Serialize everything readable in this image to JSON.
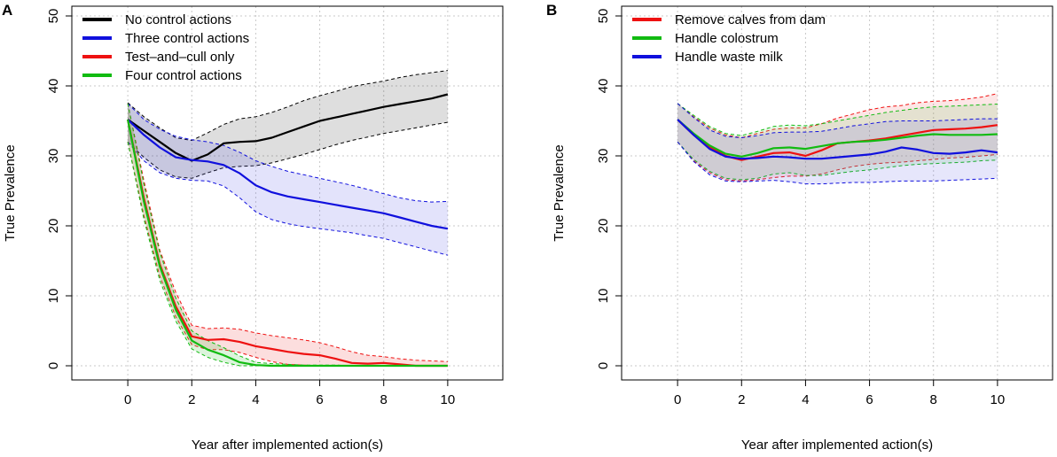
{
  "chart_data": [
    {
      "panel": "A",
      "type": "line",
      "xlabel": "Year after implemented action(s)",
      "ylabel": "True Prevalence",
      "xlim": [
        -1.5,
        11.5
      ],
      "ylim": [
        0,
        50
      ],
      "xticks": [
        0,
        2,
        4,
        6,
        8,
        10
      ],
      "yticks": [
        0,
        10,
        20,
        30,
        40,
        50
      ],
      "grid": true,
      "legend_position": "top-left",
      "series": [
        {
          "name": "No control actions",
          "color": "#000000",
          "fill": "rgba(0,0,0,0.13)",
          "x": [
            0,
            0.5,
            1,
            1.5,
            2,
            2.5,
            3,
            3.5,
            4,
            4.5,
            5,
            5.5,
            6,
            6.5,
            7,
            7.5,
            8,
            8.5,
            9,
            9.5,
            10
          ],
          "mean": [
            35.2,
            33.6,
            32.0,
            30.4,
            29.3,
            30.2,
            31.8,
            32.0,
            32.1,
            32.6,
            33.4,
            34.2,
            35.0,
            35.5,
            36.0,
            36.5,
            37.0,
            37.4,
            37.8,
            38.2,
            38.8
          ],
          "lower": [
            32.0,
            29.8,
            28.0,
            27.0,
            26.8,
            27.6,
            28.3,
            28.5,
            28.6,
            29.0,
            29.6,
            30.2,
            30.9,
            31.6,
            32.2,
            32.7,
            33.2,
            33.6,
            34.0,
            34.4,
            34.8
          ],
          "upper": [
            37.6,
            35.6,
            34.0,
            32.6,
            32.2,
            33.3,
            34.5,
            35.3,
            35.6,
            36.2,
            37.0,
            37.9,
            38.6,
            39.2,
            39.9,
            40.3,
            40.7,
            41.2,
            41.6,
            41.9,
            42.2
          ]
        },
        {
          "name": "Three control actions",
          "color": "#1010dd",
          "fill": "rgba(90,90,230,0.17)",
          "x": [
            0,
            0.5,
            1,
            1.5,
            2,
            2.5,
            3,
            3.5,
            4,
            4.5,
            5,
            5.5,
            6,
            6.5,
            7,
            7.5,
            8,
            8.5,
            9,
            9.5,
            10
          ],
          "mean": [
            35.2,
            33.0,
            31.2,
            29.8,
            29.4,
            29.2,
            28.7,
            27.5,
            25.8,
            24.8,
            24.2,
            23.8,
            23.4,
            23.0,
            22.6,
            22.2,
            21.8,
            21.2,
            20.6,
            20.0,
            19.6
          ],
          "lower": [
            32.0,
            29.3,
            27.6,
            26.8,
            26.5,
            26.4,
            25.7,
            24.0,
            22.0,
            20.9,
            20.3,
            19.9,
            19.6,
            19.3,
            19.0,
            18.6,
            18.2,
            17.6,
            17.0,
            16.4,
            15.8
          ],
          "upper": [
            37.5,
            35.2,
            33.8,
            32.8,
            32.3,
            32.0,
            31.5,
            30.5,
            29.3,
            28.5,
            27.8,
            27.3,
            26.8,
            26.3,
            25.8,
            25.2,
            24.6,
            24.0,
            23.6,
            23.4,
            23.5
          ]
        },
        {
          "name": "Test–and–cull only",
          "color": "#ee1111",
          "fill": "rgba(240,90,90,0.2)",
          "x": [
            0,
            0.5,
            1,
            1.5,
            2,
            2.5,
            3,
            3.5,
            4,
            4.5,
            5,
            5.5,
            6,
            6.5,
            7,
            7.5,
            8,
            8.5,
            9,
            9.5,
            10
          ],
          "mean": [
            35.2,
            24.0,
            14.5,
            8.5,
            4.2,
            3.7,
            3.8,
            3.4,
            2.8,
            2.4,
            2.0,
            1.7,
            1.5,
            1.0,
            0.4,
            0.3,
            0.4,
            0.2,
            0.0,
            0.0,
            0.0
          ],
          "lower": [
            32.0,
            21.5,
            12.8,
            7.0,
            3.0,
            2.3,
            2.3,
            1.9,
            1.2,
            0.6,
            0.2,
            0.1,
            0.0,
            0.0,
            0.0,
            0.0,
            0.0,
            0.0,
            0.0,
            0.0,
            0.0
          ],
          "upper": [
            37.5,
            26.5,
            16.5,
            10.5,
            5.8,
            5.3,
            5.4,
            5.2,
            4.7,
            4.3,
            4.0,
            3.7,
            3.3,
            2.7,
            2.0,
            1.5,
            1.3,
            1.0,
            0.8,
            0.7,
            0.6
          ]
        },
        {
          "name": "Four control actions",
          "color": "#11bb11",
          "fill": "rgba(80,200,80,0.2)",
          "x": [
            0,
            0.5,
            1,
            1.5,
            2,
            2.5,
            3,
            3.5,
            4,
            4.5,
            5,
            5.5,
            6,
            6.5,
            7,
            7.5,
            8,
            8.5,
            9,
            9.5,
            10
          ],
          "mean": [
            35.2,
            23.5,
            14.2,
            8.0,
            3.6,
            2.3,
            1.5,
            0.5,
            0.1,
            0.0,
            0.0,
            0.0,
            0.0,
            0.0,
            0.0,
            0.0,
            0.0,
            0.0,
            0.0,
            0.0,
            0.0
          ],
          "lower": [
            32.0,
            21.0,
            12.2,
            6.4,
            2.4,
            1.2,
            0.5,
            0.0,
            0.0,
            0.0,
            0.0,
            0.0,
            0.0,
            0.0,
            0.0,
            0.0,
            0.0,
            0.0,
            0.0,
            0.0,
            0.0
          ],
          "upper": [
            37.5,
            26.0,
            16.2,
            9.7,
            5.0,
            3.6,
            2.6,
            1.4,
            0.5,
            0.3,
            0.2,
            0.1,
            0.1,
            0.1,
            0.0,
            0.0,
            0.0,
            0.0,
            0.0,
            0.0,
            0.0
          ]
        }
      ]
    },
    {
      "panel": "B",
      "type": "line",
      "xlabel": "Year after implemented action(s)",
      "ylabel": "True Prevalence",
      "xlim": [
        -1.5,
        11.5
      ],
      "ylim": [
        0,
        50
      ],
      "xticks": [
        0,
        2,
        4,
        6,
        8,
        10
      ],
      "yticks": [
        0,
        10,
        20,
        30,
        40,
        50
      ],
      "grid": true,
      "legend_position": "top-left",
      "series": [
        {
          "name": "Remove calves from dam",
          "color": "#ee1111",
          "fill": "rgba(240,90,90,0.15)",
          "x": [
            0,
            0.5,
            1,
            1.5,
            2,
            2.5,
            3,
            3.5,
            4,
            4.5,
            5,
            5.5,
            6,
            6.5,
            7,
            7.5,
            8,
            8.5,
            9,
            9.5,
            10
          ],
          "mean": [
            35.2,
            33.0,
            31.2,
            30.0,
            29.4,
            29.9,
            30.4,
            30.5,
            30.0,
            30.8,
            31.8,
            32.0,
            32.2,
            32.5,
            32.9,
            33.3,
            33.7,
            33.8,
            33.9,
            34.1,
            34.4
          ],
          "lower": [
            32.0,
            29.3,
            27.6,
            26.6,
            26.4,
            26.6,
            26.9,
            27.1,
            27.1,
            27.4,
            28.0,
            28.5,
            28.8,
            29.0,
            29.1,
            29.3,
            29.5,
            29.7,
            29.8,
            30.0,
            30.2
          ],
          "upper": [
            37.5,
            35.6,
            34.0,
            33.0,
            32.6,
            33.2,
            33.8,
            34.0,
            34.0,
            34.6,
            35.4,
            36.0,
            36.6,
            37.0,
            37.2,
            37.6,
            37.8,
            37.9,
            38.1,
            38.4,
            38.9
          ]
        },
        {
          "name": "Handle colostrum",
          "color": "#11bb11",
          "fill": "rgba(90,200,90,0.15)",
          "x": [
            0,
            0.5,
            1,
            1.5,
            2,
            2.5,
            3,
            3.5,
            4,
            4.5,
            5,
            5.5,
            6,
            6.5,
            7,
            7.5,
            8,
            8.5,
            9,
            9.5,
            10
          ],
          "mean": [
            35.2,
            33.2,
            31.5,
            30.3,
            29.9,
            30.4,
            31.1,
            31.2,
            31.0,
            31.4,
            31.8,
            32.0,
            32.1,
            32.3,
            32.6,
            32.9,
            33.1,
            33.0,
            33.0,
            33.0,
            33.1
          ],
          "lower": [
            32.0,
            29.5,
            27.8,
            26.8,
            26.6,
            26.8,
            27.4,
            27.6,
            27.2,
            27.2,
            27.5,
            27.8,
            28.0,
            28.3,
            28.6,
            28.8,
            28.9,
            29.0,
            29.1,
            29.3,
            29.4
          ],
          "upper": [
            37.5,
            35.8,
            34.2,
            33.2,
            32.9,
            33.5,
            34.2,
            34.4,
            34.3,
            34.6,
            35.0,
            35.4,
            35.8,
            36.2,
            36.5,
            36.8,
            37.0,
            37.1,
            37.2,
            37.3,
            37.4
          ]
        },
        {
          "name": "Handle waste milk",
          "color": "#1010dd",
          "fill": "rgba(90,90,230,0.15)",
          "x": [
            0,
            0.5,
            1,
            1.5,
            2,
            2.5,
            3,
            3.5,
            4,
            4.5,
            5,
            5.5,
            6,
            6.5,
            7,
            7.5,
            8,
            8.5,
            9,
            9.5,
            10
          ],
          "mean": [
            35.2,
            33.0,
            31.0,
            29.9,
            29.6,
            29.7,
            29.9,
            29.8,
            29.6,
            29.6,
            29.8,
            30.0,
            30.2,
            30.6,
            31.2,
            30.9,
            30.4,
            30.3,
            30.5,
            30.8,
            30.5
          ],
          "lower": [
            32.0,
            29.2,
            27.3,
            26.4,
            26.3,
            26.4,
            26.5,
            26.3,
            26.0,
            26.0,
            26.1,
            26.2,
            26.2,
            26.3,
            26.4,
            26.4,
            26.4,
            26.5,
            26.6,
            26.7,
            26.8
          ],
          "upper": [
            37.5,
            35.5,
            33.7,
            32.8,
            32.6,
            32.9,
            33.3,
            33.4,
            33.4,
            33.5,
            33.9,
            34.3,
            34.6,
            34.9,
            35.0,
            35.0,
            35.0,
            35.1,
            35.2,
            35.3,
            35.3
          ]
        }
      ]
    }
  ]
}
